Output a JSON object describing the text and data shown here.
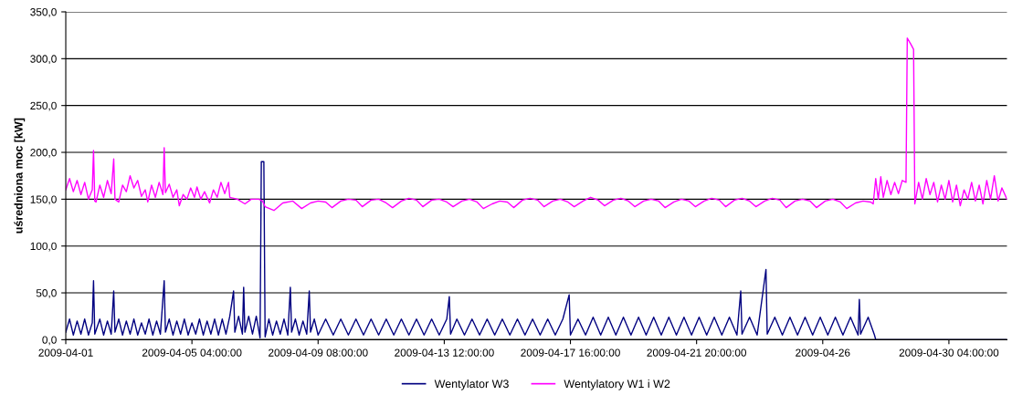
{
  "chart_data": {
    "type": "line",
    "ylabel": "uśredniona moc [kW]",
    "xlim": [
      "2009-04-01T00:00",
      "2009-05-02T02:00"
    ],
    "xticks": [
      {
        "value": "2009-04-01T00:00",
        "label": "2009-04-01"
      },
      {
        "value": "2009-04-05T04:00",
        "label": "2009-04-05 04:00:00"
      },
      {
        "value": "2009-04-09T08:00",
        "label": "2009-04-09 08:00:00"
      },
      {
        "value": "2009-04-13T12:00",
        "label": "2009-04-13 12:00:00"
      },
      {
        "value": "2009-04-17T16:00",
        "label": "2009-04-17 16:00:00"
      },
      {
        "value": "2009-04-21T20:00",
        "label": "2009-04-21 20:00:00"
      },
      {
        "value": "2009-04-26T00:00",
        "label": "2009-04-26"
      },
      {
        "value": "2009-04-30T04:00",
        "label": "2009-04-30 04:00:00"
      }
    ],
    "ylim": [
      0,
      350
    ],
    "yticks": [
      {
        "value": 0,
        "label": "0,0"
      },
      {
        "value": 50,
        "label": "50,0"
      },
      {
        "value": 100,
        "label": "100,0"
      },
      {
        "value": 150,
        "label": "150,0"
      },
      {
        "value": 200,
        "label": "200,0"
      },
      {
        "value": 250,
        "label": "250,0"
      },
      {
        "value": 300,
        "label": "300,0"
      },
      {
        "value": 350,
        "label": "350,0"
      }
    ],
    "grid": "y",
    "legend": "bottom",
    "marker": "none",
    "line_style": "solid",
    "series": [
      {
        "name": "Wentylator W3",
        "color": "#000080",
        "x": [
          "2009-04-01T00:00",
          "2009-04-01T03:00",
          "2009-04-01T06:00",
          "2009-04-01T09:00",
          "2009-04-01T12:00",
          "2009-04-01T15:00",
          "2009-04-01T18:00",
          "2009-04-01T21:00",
          "2009-04-01T22:00",
          "2009-04-01T23:00",
          "2009-04-02T03:00",
          "2009-04-02T06:00",
          "2009-04-02T09:00",
          "2009-04-02T12:00",
          "2009-04-02T14:00",
          "2009-04-02T15:00",
          "2009-04-02T18:00",
          "2009-04-02T21:00",
          "2009-04-03T00:00",
          "2009-04-03T03:00",
          "2009-04-03T06:00",
          "2009-04-03T09:00",
          "2009-04-03T12:00",
          "2009-04-03T15:00",
          "2009-04-03T18:00",
          "2009-04-03T21:00",
          "2009-04-04T00:00",
          "2009-04-04T03:00",
          "2009-04-04T06:00",
          "2009-04-04T07:00",
          "2009-04-04T10:00",
          "2009-04-04T13:00",
          "2009-04-04T16:00",
          "2009-04-04T19:00",
          "2009-04-04T22:00",
          "2009-04-05T01:00",
          "2009-04-05T04:00",
          "2009-04-05T07:00",
          "2009-04-05T10:00",
          "2009-04-05T13:00",
          "2009-04-05T16:00",
          "2009-04-05T19:00",
          "2009-04-05T22:00",
          "2009-04-06T01:00",
          "2009-04-06T04:00",
          "2009-04-06T07:00",
          "2009-04-06T10:00",
          "2009-04-06T13:00",
          "2009-04-06T14:00",
          "2009-04-06T17:00",
          "2009-04-06T20:00",
          "2009-04-06T21:00",
          "2009-04-06T22:00",
          "2009-04-07T01:00",
          "2009-04-07T04:00",
          "2009-04-07T07:00",
          "2009-04-07T10:00",
          "2009-04-07T11:00",
          "2009-04-07T13:00",
          "2009-04-07T14:00",
          "2009-04-07T17:00",
          "2009-04-07T20:00",
          "2009-04-07T23:00",
          "2009-04-08T02:00",
          "2009-04-08T05:00",
          "2009-04-08T08:00",
          "2009-04-08T10:00",
          "2009-04-08T11:00",
          "2009-04-08T14:00",
          "2009-04-08T17:00",
          "2009-04-08T20:00",
          "2009-04-08T23:00",
          "2009-04-09T01:00",
          "2009-04-09T02:00",
          "2009-04-09T05:00",
          "2009-04-09T08:00",
          "2009-04-09T14:00",
          "2009-04-09T20:00",
          "2009-04-10T02:00",
          "2009-04-10T08:00",
          "2009-04-10T14:00",
          "2009-04-10T20:00",
          "2009-04-11T02:00",
          "2009-04-11T08:00",
          "2009-04-11T14:00",
          "2009-04-11T20:00",
          "2009-04-12T02:00",
          "2009-04-12T08:00",
          "2009-04-12T14:00",
          "2009-04-12T20:00",
          "2009-04-13T02:00",
          "2009-04-13T08:00",
          "2009-04-13T14:00",
          "2009-04-13T16:00",
          "2009-04-13T17:00",
          "2009-04-13T22:00",
          "2009-04-14T04:00",
          "2009-04-14T10:00",
          "2009-04-14T16:00",
          "2009-04-14T22:00",
          "2009-04-15T04:00",
          "2009-04-15T10:00",
          "2009-04-15T16:00",
          "2009-04-15T22:00",
          "2009-04-16T04:00",
          "2009-04-16T10:00",
          "2009-04-16T16:00",
          "2009-04-16T22:00",
          "2009-04-17T04:00",
          "2009-04-17T10:00",
          "2009-04-17T15:00",
          "2009-04-17T16:00",
          "2009-04-17T22:00",
          "2009-04-18T04:00",
          "2009-04-18T10:00",
          "2009-04-18T16:00",
          "2009-04-18T22:00",
          "2009-04-19T04:00",
          "2009-04-19T10:00",
          "2009-04-19T16:00",
          "2009-04-19T22:00",
          "2009-04-20T04:00",
          "2009-04-20T10:00",
          "2009-04-20T16:00",
          "2009-04-20T22:00",
          "2009-04-21T04:00",
          "2009-04-21T10:00",
          "2009-04-21T16:00",
          "2009-04-21T22:00",
          "2009-04-22T04:00",
          "2009-04-22T10:00",
          "2009-04-22T16:00",
          "2009-04-22T22:00",
          "2009-04-23T04:00",
          "2009-04-23T07:00",
          "2009-04-23T08:00",
          "2009-04-23T14:00",
          "2009-04-23T20:00",
          "2009-04-24T03:00",
          "2009-04-24T04:00",
          "2009-04-24T10:00",
          "2009-04-24T16:00",
          "2009-04-24T22:00",
          "2009-04-25T04:00",
          "2009-04-25T10:00",
          "2009-04-25T16:00",
          "2009-04-25T22:00",
          "2009-04-26T04:00",
          "2009-04-26T10:00",
          "2009-04-26T16:00",
          "2009-04-26T22:00",
          "2009-04-27T04:00",
          "2009-04-27T05:00",
          "2009-04-27T06:00",
          "2009-04-27T12:00",
          "2009-04-27T17:00",
          "2009-04-27T18:00",
          "2009-05-02T02:00"
        ],
        "values": [
          8,
          22,
          5,
          20,
          6,
          22,
          5,
          18,
          63,
          6,
          22,
          5,
          20,
          6,
          52,
          8,
          22,
          5,
          20,
          6,
          22,
          5,
          18,
          6,
          22,
          5,
          20,
          6,
          63,
          8,
          22,
          5,
          20,
          6,
          22,
          5,
          18,
          6,
          22,
          5,
          20,
          6,
          22,
          5,
          22,
          6,
          25,
          52,
          8,
          25,
          6,
          56,
          8,
          25,
          6,
          25,
          2,
          190,
          190,
          3,
          22,
          5,
          20,
          6,
          22,
          5,
          56,
          8,
          22,
          5,
          20,
          6,
          52,
          8,
          22,
          5,
          22,
          5,
          22,
          5,
          22,
          5,
          22,
          5,
          22,
          5,
          22,
          5,
          22,
          5,
          22,
          5,
          22,
          46,
          6,
          22,
          5,
          22,
          5,
          22,
          5,
          22,
          5,
          22,
          5,
          22,
          5,
          22,
          5,
          22,
          48,
          5,
          22,
          5,
          24,
          5,
          24,
          5,
          24,
          5,
          24,
          5,
          24,
          5,
          24,
          5,
          24,
          5,
          24,
          5,
          24,
          5,
          24,
          5,
          52,
          6,
          24,
          5,
          75,
          6,
          24,
          5,
          24,
          5,
          24,
          5,
          24,
          5,
          24,
          5,
          24,
          5,
          43,
          6,
          24,
          5,
          0,
          0
        ]
      },
      {
        "name": "Wentylatory W1 i W2",
        "color": "#ff00ff",
        "x": [
          "2009-04-01T00:00",
          "2009-04-01T03:00",
          "2009-04-01T06:00",
          "2009-04-01T09:00",
          "2009-04-01T12:00",
          "2009-04-01T15:00",
          "2009-04-01T18:00",
          "2009-04-01T21:00",
          "2009-04-01T22:00",
          "2009-04-01T23:00",
          "2009-04-02T00:00",
          "2009-04-02T03:00",
          "2009-04-02T06:00",
          "2009-04-02T09:00",
          "2009-04-02T12:00",
          "2009-04-02T14:00",
          "2009-04-02T15:00",
          "2009-04-02T18:00",
          "2009-04-02T21:00",
          "2009-04-03T00:00",
          "2009-04-03T03:00",
          "2009-04-03T06:00",
          "2009-04-03T09:00",
          "2009-04-03T12:00",
          "2009-04-03T15:00",
          "2009-04-03T17:00",
          "2009-04-03T20:00",
          "2009-04-03T23:00",
          "2009-04-04T02:00",
          "2009-04-04T05:00",
          "2009-04-04T06:00",
          "2009-04-04T07:00",
          "2009-04-04T10:00",
          "2009-04-04T13:00",
          "2009-04-04T16:00",
          "2009-04-04T18:00",
          "2009-04-04T21:00",
          "2009-04-05T00:00",
          "2009-04-05T03:00",
          "2009-04-05T06:00",
          "2009-04-05T08:00",
          "2009-04-05T11:00",
          "2009-04-05T14:00",
          "2009-04-05T18:00",
          "2009-04-05T21:00",
          "2009-04-06T00:00",
          "2009-04-06T03:00",
          "2009-04-06T06:00",
          "2009-04-06T09:00",
          "2009-04-06T10:00",
          "2009-04-06T16:00",
          "2009-04-06T22:00",
          "2009-04-07T03:00",
          "2009-04-07T09:00",
          "2009-04-07T12:00",
          "2009-04-07T14:00",
          "2009-04-07T21:00",
          "2009-04-08T04:00",
          "2009-04-08T12:00",
          "2009-04-08T19:00",
          "2009-04-09T02:00",
          "2009-04-09T08:00",
          "2009-04-09T14:00",
          "2009-04-09T19:00",
          "2009-04-10T02:00",
          "2009-04-10T08:00",
          "2009-04-10T14:00",
          "2009-04-10T19:00",
          "2009-04-11T02:00",
          "2009-04-11T08:00",
          "2009-04-11T14:00",
          "2009-04-11T19:00",
          "2009-04-12T02:00",
          "2009-04-12T08:00",
          "2009-04-12T14:00",
          "2009-04-12T19:00",
          "2009-04-13T02:00",
          "2009-04-13T08:00",
          "2009-04-13T14:00",
          "2009-04-13T19:00",
          "2009-04-14T02:00",
          "2009-04-14T08:00",
          "2009-04-14T14:00",
          "2009-04-14T19:00",
          "2009-04-15T02:00",
          "2009-04-15T08:00",
          "2009-04-15T14:00",
          "2009-04-15T19:00",
          "2009-04-16T02:00",
          "2009-04-16T08:00",
          "2009-04-16T14:00",
          "2009-04-16T19:00",
          "2009-04-17T02:00",
          "2009-04-17T08:00",
          "2009-04-17T14:00",
          "2009-04-17T19:00",
          "2009-04-18T02:00",
          "2009-04-18T08:00",
          "2009-04-18T14:00",
          "2009-04-18T19:00",
          "2009-04-19T02:00",
          "2009-04-19T08:00",
          "2009-04-19T14:00",
          "2009-04-19T19:00",
          "2009-04-20T02:00",
          "2009-04-20T08:00",
          "2009-04-20T14:00",
          "2009-04-20T19:00",
          "2009-04-21T02:00",
          "2009-04-21T08:00",
          "2009-04-21T14:00",
          "2009-04-21T19:00",
          "2009-04-22T02:00",
          "2009-04-22T08:00",
          "2009-04-22T14:00",
          "2009-04-22T19:00",
          "2009-04-23T02:00",
          "2009-04-23T08:00",
          "2009-04-23T14:00",
          "2009-04-23T19:00",
          "2009-04-24T02:00",
          "2009-04-24T08:00",
          "2009-04-24T14:00",
          "2009-04-24T19:00",
          "2009-04-25T02:00",
          "2009-04-25T08:00",
          "2009-04-25T14:00",
          "2009-04-25T19:00",
          "2009-04-26T02:00",
          "2009-04-26T08:00",
          "2009-04-26T14:00",
          "2009-04-26T19:00",
          "2009-04-27T02:00",
          "2009-04-27T08:00",
          "2009-04-27T14:00",
          "2009-04-27T16:00",
          "2009-04-27T18:00",
          "2009-04-27T20:00",
          "2009-04-27T22:00",
          "2009-04-28T00:00",
          "2009-04-28T03:00",
          "2009-04-28T06:00",
          "2009-04-28T09:00",
          "2009-04-28T12:00",
          "2009-04-28T15:00",
          "2009-04-28T18:00",
          "2009-04-28T19:00",
          "2009-04-28T22:00",
          "2009-04-29T00:00",
          "2009-04-29T01:00",
          "2009-04-29T04:00",
          "2009-04-29T07:00",
          "2009-04-29T10:00",
          "2009-04-29T13:00",
          "2009-04-29T16:00",
          "2009-04-29T19:00",
          "2009-04-29T22:00",
          "2009-04-30T01:00",
          "2009-04-30T04:00",
          "2009-04-30T07:00",
          "2009-04-30T10:00",
          "2009-04-30T13:00",
          "2009-04-30T16:00",
          "2009-04-30T19:00",
          "2009-04-30T22:00",
          "2009-05-01T01:00",
          "2009-05-01T04:00",
          "2009-05-01T07:00",
          "2009-05-01T10:00",
          "2009-05-01T13:00",
          "2009-05-01T16:00",
          "2009-05-01T19:00",
          "2009-05-01T22:00",
          "2009-05-02T02:00"
        ],
        "values": [
          160,
          172,
          158,
          170,
          155,
          168,
          150,
          160,
          202,
          148,
          147,
          165,
          152,
          170,
          156,
          193,
          150,
          147,
          165,
          158,
          175,
          162,
          170,
          153,
          160,
          147,
          165,
          152,
          168,
          155,
          205,
          157,
          166,
          152,
          160,
          143,
          155,
          150,
          162,
          152,
          163,
          150,
          158,
          146,
          160,
          152,
          168,
          156,
          168,
          152,
          150,
          145,
          150,
          150,
          148,
          142,
          138,
          146,
          148,
          140,
          146,
          148,
          147,
          141,
          148,
          150,
          149,
          142,
          149,
          150,
          146,
          141,
          148,
          151,
          149,
          142,
          149,
          150,
          147,
          142,
          148,
          150,
          147,
          140,
          145,
          148,
          147,
          141,
          149,
          151,
          149,
          142,
          148,
          150,
          147,
          142,
          148,
          152,
          149,
          143,
          149,
          151,
          148,
          142,
          148,
          150,
          148,
          141,
          147,
          150,
          148,
          142,
          148,
          151,
          149,
          142,
          149,
          151,
          148,
          142,
          148,
          151,
          149,
          141,
          148,
          150,
          148,
          141,
          148,
          150,
          147,
          140,
          146,
          148,
          147,
          145,
          172,
          150,
          174,
          152,
          170,
          155,
          168,
          156,
          170,
          168,
          322,
          315,
          310,
          145,
          168,
          150,
          172,
          155,
          168,
          147,
          165,
          150,
          170,
          147,
          165,
          143,
          160,
          150,
          168,
          148,
          165,
          145,
          170,
          150,
          175,
          148,
          162,
          150
        ]
      }
    ]
  }
}
